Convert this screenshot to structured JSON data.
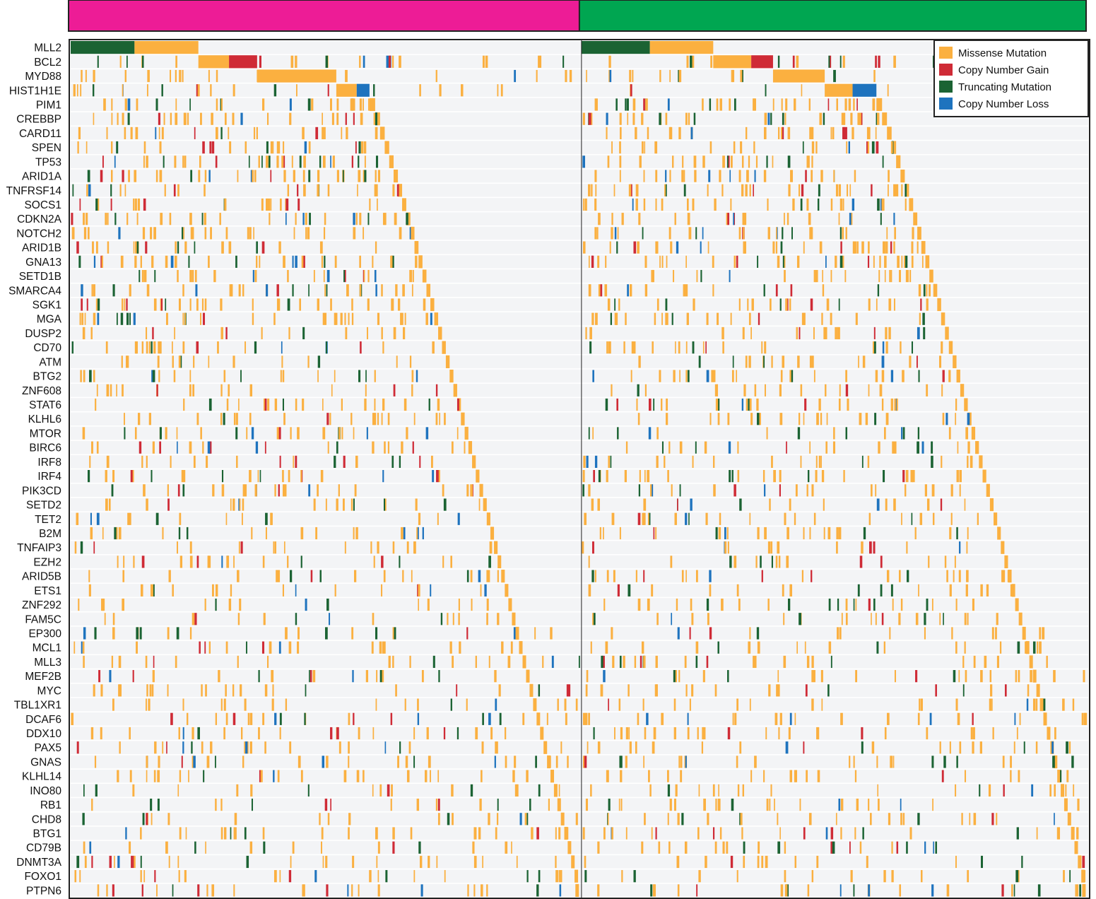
{
  "chart_data": {
    "type": "heatmap",
    "title": "",
    "subtitle": "",
    "xlabel": "",
    "ylabel": "",
    "grid": false,
    "legend_placement": "top-right",
    "groups": [
      {
        "color": "#ed1c96",
        "fraction": 0.502
      },
      {
        "color": "#00a651",
        "fraction": 0.498
      }
    ],
    "legend": [
      {
        "label": "Missense Mutation",
        "color": "#fbb040"
      },
      {
        "label": "Copy Number Gain",
        "color": "#cf2b36"
      },
      {
        "label": "Truncating Mutation",
        "color": "#1b6333"
      },
      {
        "label": "Copy Number Loss",
        "color": "#1e73be"
      }
    ],
    "background_color": "#f3f4f6",
    "genes": [
      "MLL2",
      "BCL2",
      "MYD88",
      "HIST1H1E",
      "PIM1",
      "CREBBP",
      "CARD11",
      "SPEN",
      "TP53",
      "ARID1A",
      "TNFRSF14",
      "SOCS1",
      "CDKN2A",
      "NOTCH2",
      "ARID1B",
      "GNA13",
      "SETD1B",
      "SMARCA4",
      "SGK1",
      "MGA",
      "DUSP2",
      "CD70",
      "ATM",
      "BTG2",
      "ZNF608",
      "STAT6",
      "KLHL6",
      "MTOR",
      "BIRC6",
      "IRF8",
      "IRF4",
      "PIK3CD",
      "SETD2",
      "TET2",
      "B2M",
      "TNFAIP3",
      "EZH2",
      "ARID5B",
      "ETS1",
      "ZNF292",
      "FAM5C",
      "EP300",
      "MCL1",
      "MLL3",
      "MEF2B",
      "MYC",
      "TBL1XR1",
      "DCAF6",
      "DDX10",
      "PAX5",
      "GNAS",
      "KLHL14",
      "INO80",
      "RB1",
      "CHD8",
      "BTG1",
      "CD79B",
      "DNMT3A",
      "FOXO1",
      "PTPN6"
    ],
    "waterfall_blocks": [
      {
        "gene": "MLL2",
        "group": 0,
        "start": 0.0,
        "end": 0.125,
        "type": "Truncating Mutation"
      },
      {
        "gene": "MLL2",
        "group": 0,
        "start": 0.125,
        "end": 0.25,
        "type": "Missense Mutation"
      },
      {
        "gene": "BCL2",
        "group": 0,
        "start": 0.25,
        "end": 0.31,
        "type": "Missense Mutation"
      },
      {
        "gene": "BCL2",
        "group": 0,
        "start": 0.31,
        "end": 0.365,
        "type": "Copy Number Gain"
      },
      {
        "gene": "MYD88",
        "group": 0,
        "start": 0.365,
        "end": 0.52,
        "type": "Missense Mutation"
      },
      {
        "gene": "HIST1H1E",
        "group": 0,
        "start": 0.52,
        "end": 0.56,
        "type": "Missense Mutation"
      },
      {
        "gene": "HIST1H1E",
        "group": 0,
        "start": 0.56,
        "end": 0.585,
        "type": "Copy Number Loss"
      },
      {
        "gene": "MLL2",
        "group": 1,
        "start": 0.0,
        "end": 0.135,
        "type": "Truncating Mutation"
      },
      {
        "gene": "MLL2",
        "group": 1,
        "start": 0.135,
        "end": 0.26,
        "type": "Missense Mutation"
      },
      {
        "gene": "BCL2",
        "group": 1,
        "start": 0.26,
        "end": 0.335,
        "type": "Missense Mutation"
      },
      {
        "gene": "BCL2",
        "group": 1,
        "start": 0.335,
        "end": 0.378,
        "type": "Copy Number Gain"
      },
      {
        "gene": "MYD88",
        "group": 1,
        "start": 0.378,
        "end": 0.48,
        "type": "Missense Mutation"
      },
      {
        "gene": "HIST1H1E",
        "group": 1,
        "start": 0.48,
        "end": 0.535,
        "type": "Missense Mutation"
      },
      {
        "gene": "HIST1H1E",
        "group": 1,
        "start": 0.535,
        "end": 0.582,
        "type": "Copy Number Loss"
      }
    ],
    "mark_mix": {
      "Missense Mutation": 0.72,
      "Truncating Mutation": 0.14,
      "Copy Number Gain": 0.08,
      "Copy Number Loss": 0.06
    }
  }
}
